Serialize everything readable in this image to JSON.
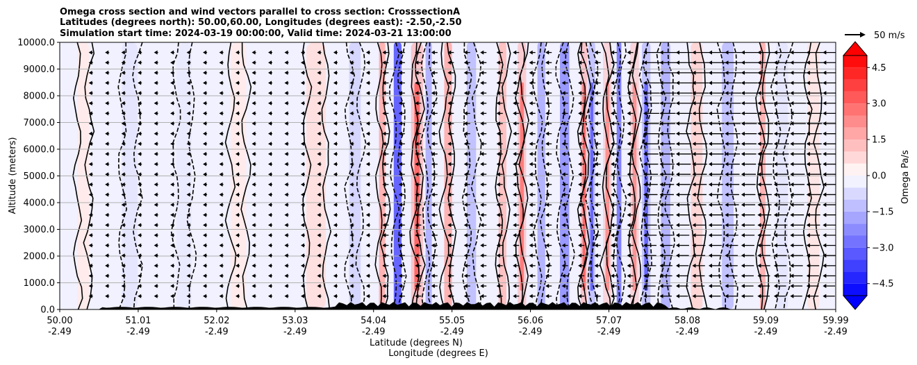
{
  "chart_data": {
    "type": "heatmap",
    "subtype": "contour cross-section with wind vectors",
    "title_lines": [
      "Omega cross section and wind vectors parallel to cross section: CrosssectionA",
      "Latitudes (degrees north): 50.00,60.00, Longitudes (degrees east): -2.50,-2.50",
      "Simulation start time: 2024-03-19 00:00:00, Valid time: 2024-03-21 13:00:00"
    ],
    "ylabel": "Altitude (meters)",
    "xlabel_lat": "Latitude (degrees N)",
    "xlabel_lon": "Longitude (degrees E)",
    "ylim": [
      0,
      10000
    ],
    "xlim": [
      50.0,
      59.99
    ],
    "y_ticks": [
      "0.0",
      "1000.0",
      "2000.0",
      "3000.0",
      "4000.0",
      "5000.0",
      "6000.0",
      "7000.0",
      "8000.0",
      "9000.0",
      "10000.0"
    ],
    "y_tick_values": [
      0,
      1000,
      2000,
      3000,
      4000,
      5000,
      6000,
      7000,
      8000,
      9000,
      10000
    ],
    "x_ticks_lat": [
      "50.00",
      "51.01",
      "52.02",
      "53.03",
      "54.04",
      "55.05",
      "56.06",
      "57.07",
      "58.08",
      "59.09",
      "59.99"
    ],
    "x_ticks_lon": [
      "-2.49",
      "-2.49",
      "-2.49",
      "-2.49",
      "-2.49",
      "-2.49",
      "-2.49",
      "-2.49",
      "-2.49",
      "-2.49",
      "-2.49"
    ],
    "x_tick_values": [
      50.0,
      51.01,
      52.02,
      53.03,
      54.04,
      55.05,
      56.06,
      57.07,
      58.08,
      59.09,
      59.99
    ],
    "colorbar": {
      "label": "Omega Pa/s",
      "range": [
        -5.0,
        5.0
      ],
      "ticks": [
        "4.5",
        "3.0",
        "1.5",
        "0.0",
        "−1.5",
        "−3.0",
        "−4.5"
      ],
      "tick_values": [
        4.5,
        3.0,
        1.5,
        0.0,
        -1.5,
        -3.0,
        -4.5
      ],
      "low_color": "#0000ff",
      "high_color": "#ff0000",
      "mid_color": "#ffffff"
    },
    "vector_key_label": "50 m/s",
    "omega_bands": [
      {
        "lat": 50.3,
        "value": 0.4,
        "width": 0.15
      },
      {
        "lat": 50.9,
        "value": -0.5,
        "width": 0.2
      },
      {
        "lat": 51.6,
        "value": -0.4,
        "width": 0.2
      },
      {
        "lat": 52.3,
        "value": 0.4,
        "width": 0.2
      },
      {
        "lat": 53.3,
        "value": 0.6,
        "width": 0.25
      },
      {
        "lat": 53.8,
        "value": -0.8,
        "width": 0.15
      },
      {
        "lat": 54.15,
        "value": 1.5,
        "width": 0.08
      },
      {
        "lat": 54.35,
        "value": -3.0,
        "width": 0.1
      },
      {
        "lat": 54.6,
        "value": 4.8,
        "width": 0.07
      },
      {
        "lat": 54.75,
        "value": -1.5,
        "width": 0.08
      },
      {
        "lat": 55.0,
        "value": 1.5,
        "width": 0.1
      },
      {
        "lat": 55.3,
        "value": -1.2,
        "width": 0.12
      },
      {
        "lat": 55.7,
        "value": 1.2,
        "width": 0.1
      },
      {
        "lat": 55.95,
        "value": 4.2,
        "width": 0.05
      },
      {
        "lat": 56.2,
        "value": -1.5,
        "width": 0.1
      },
      {
        "lat": 56.5,
        "value": -2.0,
        "width": 0.12
      },
      {
        "lat": 56.75,
        "value": 4.8,
        "width": 0.04
      },
      {
        "lat": 56.85,
        "value": -4.8,
        "width": 0.04
      },
      {
        "lat": 57.05,
        "value": 3.5,
        "width": 0.05
      },
      {
        "lat": 57.2,
        "value": -2.5,
        "width": 0.06
      },
      {
        "lat": 57.4,
        "value": 3.5,
        "width": 0.05
      },
      {
        "lat": 57.55,
        "value": -4.8,
        "width": 0.05
      },
      {
        "lat": 57.8,
        "value": -1.5,
        "width": 0.12
      },
      {
        "lat": 58.2,
        "value": 0.8,
        "width": 0.15
      },
      {
        "lat": 58.6,
        "value": -1.2,
        "width": 0.15
      },
      {
        "lat": 59.05,
        "value": 1.5,
        "width": 0.07
      },
      {
        "lat": 59.3,
        "value": -0.5,
        "width": 0.15
      },
      {
        "lat": 59.7,
        "value": 0.5,
        "width": 0.15
      }
    ]
  }
}
